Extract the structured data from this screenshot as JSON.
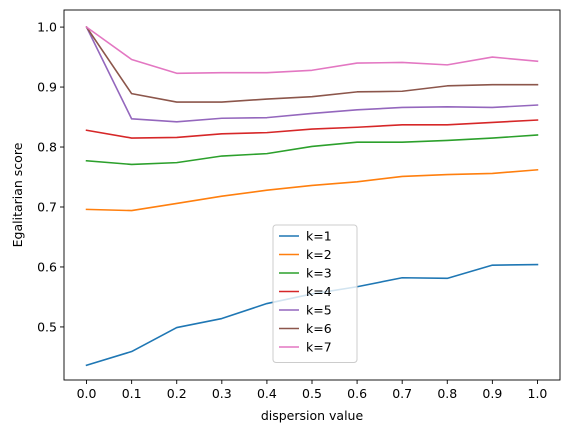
{
  "chart_data": {
    "type": "line",
    "xlabel": "dispersion value",
    "ylabel": "Egalitarian score",
    "x": [
      0.0,
      0.1,
      0.2,
      0.3,
      0.4,
      0.5,
      0.6,
      0.7,
      0.8,
      0.9,
      1.0
    ],
    "x_tick_labels": [
      "0.0",
      "0.1",
      "0.2",
      "0.3",
      "0.4",
      "0.5",
      "0.6",
      "0.7",
      "0.8",
      "0.9",
      "1.0"
    ],
    "y_ticks": [
      0.5,
      0.6,
      0.7,
      0.8,
      0.9,
      1.0
    ],
    "y_tick_labels": [
      "0.5",
      "0.6",
      "0.7",
      "0.8",
      "0.9",
      "1.0"
    ],
    "xlim": [
      -0.05,
      1.05
    ],
    "ylim": [
      0.4115,
      1.0285
    ],
    "grid": false,
    "legend_position": "lower-center",
    "series": [
      {
        "name": "k=1",
        "color": "#1f77b4",
        "values": [
          0.436,
          0.459,
          0.499,
          0.514,
          0.539,
          0.555,
          0.567,
          0.582,
          0.581,
          0.603,
          0.604
        ]
      },
      {
        "name": "k=2",
        "color": "#ff7f0e",
        "values": [
          0.696,
          0.694,
          0.706,
          0.718,
          0.728,
          0.736,
          0.742,
          0.751,
          0.754,
          0.756,
          0.762
        ]
      },
      {
        "name": "k=3",
        "color": "#2ca02c",
        "values": [
          0.777,
          0.771,
          0.774,
          0.785,
          0.789,
          0.801,
          0.808,
          0.808,
          0.811,
          0.815,
          0.82
        ]
      },
      {
        "name": "k=4",
        "color": "#d62728",
        "values": [
          0.828,
          0.815,
          0.816,
          0.822,
          0.824,
          0.83,
          0.833,
          0.837,
          0.837,
          0.841,
          0.845
        ]
      },
      {
        "name": "k=5",
        "color": "#9467bd",
        "values": [
          1.0,
          0.847,
          0.842,
          0.848,
          0.849,
          0.856,
          0.862,
          0.866,
          0.867,
          0.866,
          0.87
        ]
      },
      {
        "name": "k=6",
        "color": "#8c564b",
        "values": [
          1.0,
          0.889,
          0.875,
          0.875,
          0.88,
          0.884,
          0.892,
          0.893,
          0.902,
          0.904,
          0.904
        ]
      },
      {
        "name": "k=7",
        "color": "#e377c2",
        "values": [
          1.0,
          0.946,
          0.923,
          0.924,
          0.924,
          0.928,
          0.94,
          0.941,
          0.937,
          0.95,
          0.943
        ]
      }
    ]
  }
}
